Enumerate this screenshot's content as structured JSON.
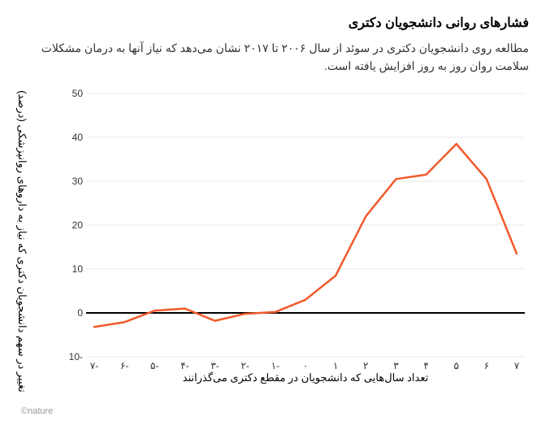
{
  "title": "فشارهای روانی دانشجویان دکتری",
  "subtitle": "مطالعه روی دانشجویان دکتری در سوئد از سال ۲۰۰۶ تا ۲۰۱۷ نشان می‌دهد که نیاز آنها به درمان مشکلات سلامت روان روز به روز افزایش یافته است.",
  "y_axis_label": "تغییر در سهم دانشجویان دکتری که نیاز به داروهای روانپزشکی (درصد)",
  "x_axis_label": "تعداد سال‌هایی که دانشجویان در مقطع دکتری می‌گذرانند",
  "source": "©nature",
  "chart": {
    "type": "line",
    "x_values": [
      -7,
      -6,
      -5,
      -4,
      -3,
      -2,
      -1,
      0,
      1,
      2,
      3,
      4,
      5,
      6,
      7
    ],
    "y_values": [
      -3.2,
      -2.1,
      0.5,
      1.0,
      -1.8,
      -0.2,
      0.2,
      3.0,
      8.5,
      22.0,
      30.5,
      31.5,
      38.5,
      30.5,
      13.5
    ],
    "ylim": [
      -10,
      50
    ],
    "xlim": [
      -7,
      7
    ],
    "ytick_step": 10,
    "xtick_step": 1,
    "x_tick_labels": [
      "۷-",
      "۶-",
      "۵-",
      "۴-",
      "۳-",
      "۲-",
      "۱-",
      "۰",
      "۱",
      "۲",
      "۳",
      "۴",
      "۵",
      "۶",
      "۷"
    ],
    "line_color": "#f15a2b",
    "line_width": 2.5,
    "grid_color": "#e9e9e9",
    "zero_line_color": "#000000",
    "zero_line_width": 2,
    "background_color": "#ffffff",
    "tick_label_fontsize": 12,
    "axis_label_fontsize": 13,
    "title_fontsize": 16,
    "subtitle_fontsize": 14
  }
}
